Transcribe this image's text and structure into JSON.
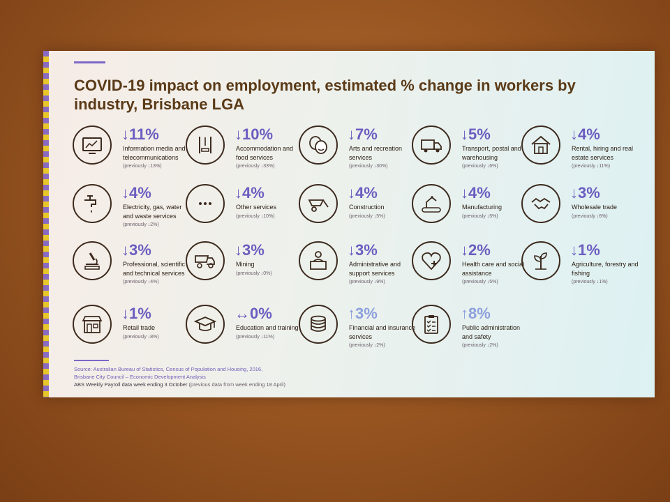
{
  "title": "COVID-19 impact on employment, estimated % change in workers by industry, Brisbane LGA",
  "industries": [
    {
      "icon": "monitor-chart-icon",
      "value": "↓11%",
      "label": "Information media and telecommunications",
      "previous": "(previously ↓13%)"
    },
    {
      "icon": "fork-knife-plate-icon",
      "value": "↓10%",
      "label": "Accommodation and food services",
      "previous": "(previously ↓33%)"
    },
    {
      "icon": "theatre-masks-icon",
      "value": "↓7%",
      "label": "Arts and recreation services",
      "previous": "(previously ↓30%)"
    },
    {
      "icon": "truck-icon",
      "value": "↓5%",
      "label": "Transport, postal and warehousing",
      "previous": "(previously ↓6%)"
    },
    {
      "icon": "house-icon",
      "value": "↓4%",
      "label": "Rental, hiring and real estate services",
      "previous": "(previously ↓11%)"
    },
    {
      "icon": "tap-icon",
      "value": "↓4%",
      "label": "Electricity, gas, water and waste services",
      "previous": "(previously ↓2%)"
    },
    {
      "icon": "dots-icon",
      "value": "↓4%",
      "label": "Other services",
      "previous": "(previously ↓10%)"
    },
    {
      "icon": "wheelbarrow-icon",
      "value": "↓4%",
      "label": "Construction",
      "previous": "(previously ↓5%)"
    },
    {
      "icon": "robot-arm-icon",
      "value": "↓4%",
      "label": "Manufacturing",
      "previous": "(previously ↓5%)"
    },
    {
      "icon": "handshake-icon",
      "value": "↓3%",
      "label": "Wholesale trade",
      "previous": "(previously ↓6%)"
    },
    {
      "icon": "microscope-icon",
      "value": "↓3%",
      "label": "Professional, scientific and technical services",
      "previous": "(previously ↓4%)"
    },
    {
      "icon": "dump-truck-icon",
      "value": "↓3%",
      "label": "Mining",
      "previous": "(previously ↓0%)"
    },
    {
      "icon": "admin-person-icon",
      "value": "↓3%",
      "label": "Administrative and support services",
      "previous": "(previously ↓9%)"
    },
    {
      "icon": "heart-plus-icon",
      "value": "↓2%",
      "label": "Health care and social assistance",
      "previous": "(previously ↓5%)"
    },
    {
      "icon": "plant-icon",
      "value": "↓1%",
      "label": "Agriculture, forestry and fishing",
      "previous": "(previously ↓1%)"
    },
    {
      "icon": "shop-icon",
      "value": "↓1%",
      "label": "Retail trade",
      "previous": "(previously ↓8%)"
    },
    {
      "icon": "graduation-cap-icon",
      "value": "↔0%",
      "label": "Education and training",
      "previous": "(previously ↓11%)"
    },
    {
      "icon": "coins-icon",
      "value": "↑3%",
      "label": "Financial and insurance services",
      "previous": "(previously ↓2%)"
    },
    {
      "icon": "clipboard-checklist-icon",
      "value": "↑8%",
      "label": "Public administration and safety",
      "previous": "(previously ↓2%)"
    }
  ],
  "source": {
    "line1": "Source: Australian Bureau of Statistics, Census of Population and Housing, 2016,",
    "line2": "Brisbane City Council – Economic Development Analysis",
    "line3": "ABS Weekly Payroll data week ending 3 October",
    "line3_note": "(previous data from week ending 18 April)"
  },
  "colors": {
    "title": "#5a3a17",
    "value": "#6b5dc0",
    "value_up": "#8d9fdc",
    "stripe_a": "#8a6bc4",
    "stripe_b": "#e8c72a"
  }
}
